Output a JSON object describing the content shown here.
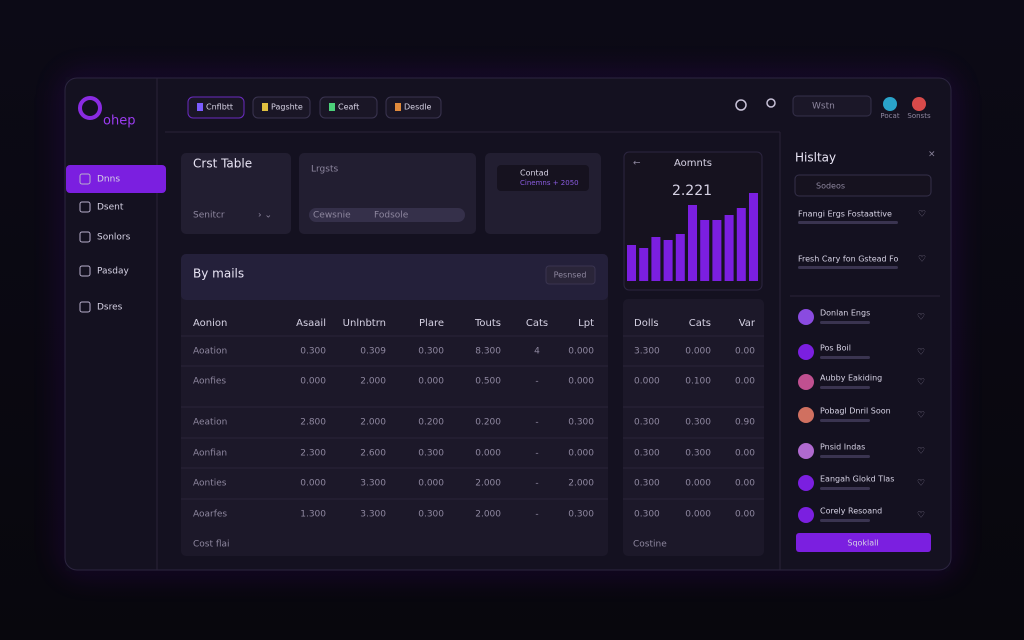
{
  "brand": "ohep",
  "nav": [
    "Dnns",
    "Dsent",
    "Sonlors",
    "Pasday",
    "Dsres"
  ],
  "tabs": [
    "Cnflbtt",
    "Pagshte",
    "Ceaft",
    "Desdle"
  ],
  "search": "Wstn",
  "users": [
    "Pocat",
    "Sonsts"
  ],
  "cards": {
    "table_title": "Crst Table",
    "table_sub": "Senitcr",
    "list_title": "Lrgsts",
    "pills": [
      "Cewsnie",
      "Fodsole"
    ],
    "contact": "Contad",
    "contact_sub": "Cinemns + 2050"
  },
  "mini_chart": {
    "type": "bar",
    "title": "Aomnts",
    "total": "2.221",
    "values": [
      36,
      33,
      44,
      41,
      47,
      76,
      61,
      61,
      66,
      73,
      88
    ],
    "ylim": [
      0,
      100
    ],
    "color": "#7b1fe0"
  },
  "table": {
    "title": "By mails",
    "button": "Pesnsed",
    "columns": [
      "Aonion",
      "Asaail",
      "Unlnbtrn",
      "Plare",
      "Touts",
      "Cats",
      "Lpt"
    ],
    "rows": [
      [
        "Aoation",
        "0.300",
        "0.309",
        "0.300",
        "8.300",
        "4",
        "0.000"
      ],
      [
        "Aonfies",
        "0.000",
        "2.000",
        "0.000",
        "0.500",
        "-",
        "0.000"
      ],
      [
        "Aeation",
        "2.800",
        "2.000",
        "0.200",
        "0.200",
        "-",
        "0.300"
      ],
      [
        "Aonfian",
        "2.300",
        "2.600",
        "0.300",
        "0.000",
        "-",
        "0.000"
      ],
      [
        "Aonties",
        "0.000",
        "3.300",
        "0.000",
        "2.000",
        "-",
        "2.000"
      ],
      [
        "Aoarfes",
        "1.300",
        "3.300",
        "0.300",
        "2.000",
        "-",
        "0.300"
      ]
    ],
    "footer": "Cost flai"
  },
  "side_table": {
    "columns": [
      "Dolls",
      "Cats",
      "Var"
    ],
    "rows": [
      [
        "3.300",
        "0.000",
        "0.00"
      ],
      [
        "0.000",
        "0.100",
        "0.00"
      ],
      [
        "0.300",
        "0.300",
        "0.90"
      ],
      [
        "0.300",
        "0.300",
        "0.00"
      ],
      [
        "0.300",
        "0.000",
        "0.00"
      ],
      [
        "0.300",
        "0.000",
        "0.00"
      ]
    ],
    "footer": "Costine"
  },
  "history": {
    "title": "Hisltay",
    "search": "Sodeos",
    "pinned": [
      "Fnangi Ergs Fostaattive",
      "Fresh Cary fon Gstead Fo"
    ],
    "items": [
      "Donlan Engs",
      "Pos Boil",
      "Aubby Eakiding",
      "Pobagl Dnril Soon",
      "Pnsid Indas",
      "Eangah Glokd Tlas",
      "Corely Resoand"
    ],
    "button": "Sqoklall"
  }
}
